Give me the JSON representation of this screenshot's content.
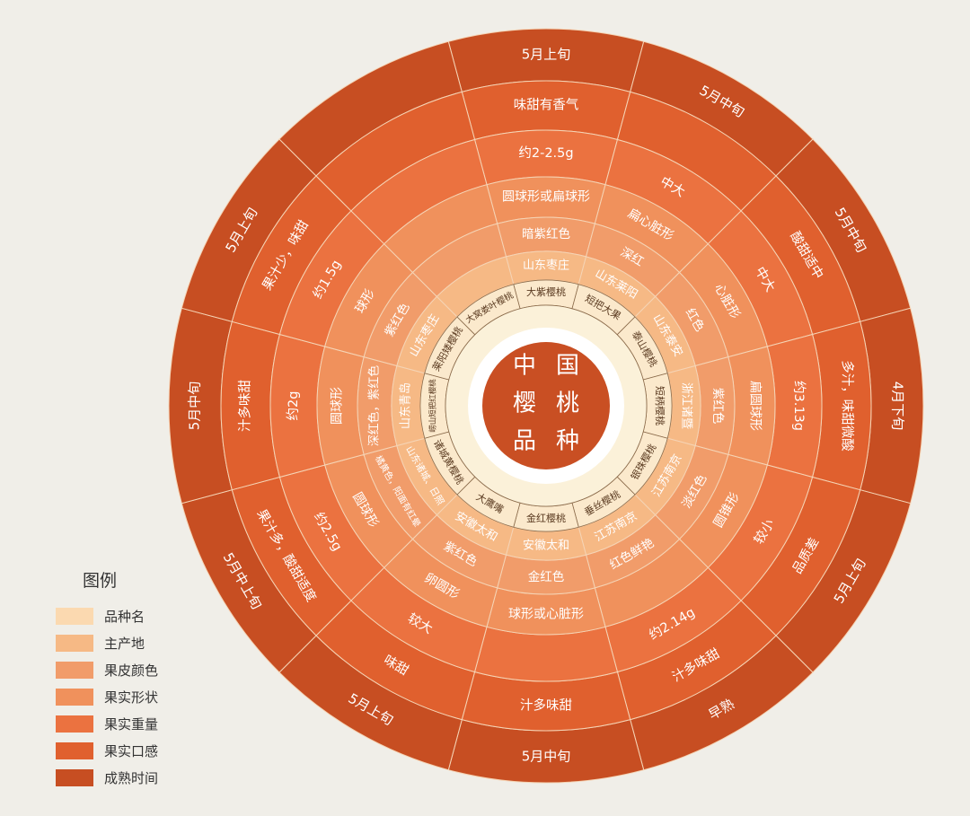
{
  "center": {
    "title_chars": [
      "中",
      "国",
      "樱",
      "桃",
      "品",
      "种"
    ]
  },
  "legend": {
    "title": "图例",
    "items": [
      {
        "label": "品种名",
        "color": "#fbd9b0"
      },
      {
        "label": "主产地",
        "color": "#f6b985"
      },
      {
        "label": "果皮颜色",
        "color": "#f19c6a"
      },
      {
        "label": "果实形状",
        "color": "#f0915c"
      },
      {
        "label": "果实重量",
        "color": "#eb7240"
      },
      {
        "label": "果实口感",
        "color": "#e0602e"
      },
      {
        "label": "成熟时间",
        "color": "#c74e22"
      }
    ]
  },
  "wheel": {
    "colors": {
      "hub": "#fbf1d9",
      "center_disc": "#c94f23",
      "center_ring": "#ffffff",
      "name_ring": "#fbe9cc",
      "dark_text": "#5a3a20",
      "light_text": "#ffffff",
      "separator": "#f5d4b5"
    },
    "varieties": [
      {
        "name": "大紫樱桃",
        "origin": "山东枣庄",
        "skin": "暗紫红色",
        "shape": "圆球形或扁球形",
        "weight": "约2-2.5g",
        "taste": "味甜有香气",
        "ripening": "5月上旬"
      },
      {
        "name": "短把大果",
        "origin": "山东莱阳",
        "skin": "深红",
        "shape": "扁心脏形",
        "weight": "中大",
        "taste": "",
        "ripening": "5月中旬"
      },
      {
        "name": "泰山樱桃",
        "origin": "山东泰安",
        "skin": "红色",
        "shape": "心脏形",
        "weight": "中大",
        "taste": "酸甜适中",
        "ripening": "5月中旬"
      },
      {
        "name": "短柄樱桃",
        "origin": "浙江诸暨",
        "skin": "紫红色",
        "shape": "扁圆球形",
        "weight": "约3.13g",
        "taste": "多汁，味甜微酸",
        "ripening": "4月下旬"
      },
      {
        "name": "银珠樱桃",
        "origin": "江苏南京",
        "skin": "淡红色",
        "shape": "圆锥形",
        "weight": "较小",
        "taste": "品质差",
        "ripening": "5月上旬"
      },
      {
        "name": "垂丝樱桃",
        "origin": "江苏南京",
        "skin": "红色鲜艳",
        "shape": "",
        "weight": "约2.14g",
        "taste": "汁多味甜",
        "ripening": "早熟"
      },
      {
        "name": "金红樱桃",
        "origin": "安徽太和",
        "skin": "金红色",
        "shape": "球形或心脏形",
        "weight": "",
        "taste": "汁多味甜",
        "ripening": "5月中旬"
      },
      {
        "name": "大鹰嘴",
        "origin": "安徽太和",
        "skin": "紫红色",
        "shape": "卵圆形",
        "weight": "较大",
        "taste": "味甜",
        "ripening": "5月上旬"
      },
      {
        "name": "诸城黄樱桃",
        "origin": "山东诸城、日照",
        "skin": "橘黄色，阳面有红晕",
        "shape": "圆球形",
        "weight": "约2.5g",
        "taste": "果汁多，酸甜适度",
        "ripening": "5月中上旬"
      },
      {
        "name": "崂山短把红樱桃",
        "origin": "山东青岛",
        "skin": "深红色，紫红色",
        "shape": "圆球形",
        "weight": "约2g",
        "taste": "汁多味甜",
        "ripening": "5月中旬"
      },
      {
        "name": "莱阳矮樱桃",
        "origin": "山东枣庄",
        "skin": "紫红色",
        "shape": "球形",
        "weight": "约1.5g",
        "taste": "果汁少，味甜",
        "ripening": "5月上旬"
      },
      {
        "name": "大窝娄叶樱桃",
        "origin": "",
        "skin": "",
        "shape": "",
        "weight": "",
        "taste": "",
        "ripening": ""
      }
    ]
  }
}
